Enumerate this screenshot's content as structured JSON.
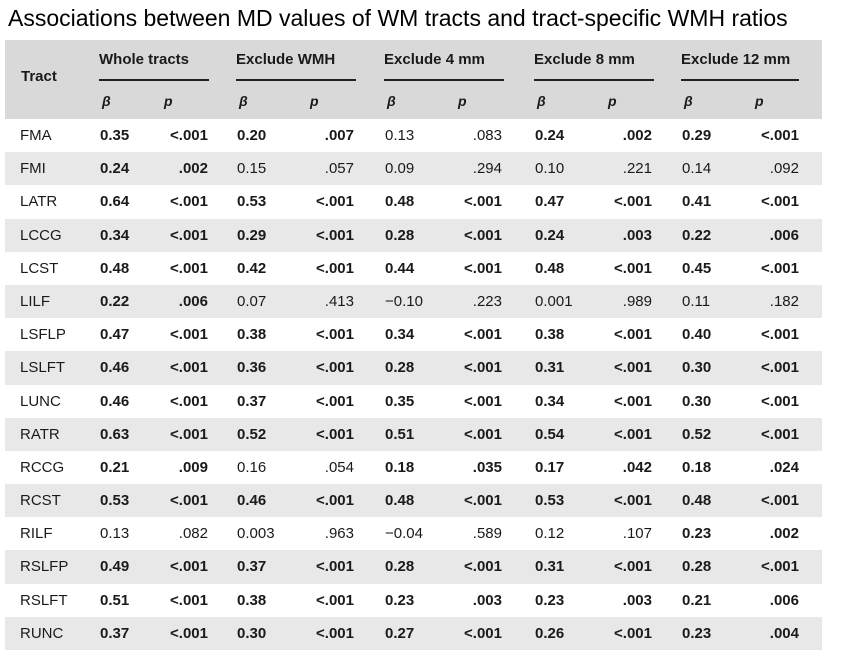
{
  "title": "Associations between MD values of WM tracts and tract-specific WMH ratios",
  "header": {
    "tract": "Tract",
    "groups": [
      "Whole tracts",
      "Exclude WMH",
      "Exclude 4 mm",
      "Exclude 8 mm",
      "Exclude 12 mm"
    ],
    "beta": "β",
    "p": "p"
  },
  "rows": [
    {
      "tract": "FMA",
      "cells": [
        [
          "0.35",
          1
        ],
        [
          "<.001",
          1
        ],
        [
          "0.20",
          1
        ],
        [
          ".007",
          1
        ],
        [
          "0.13",
          0
        ],
        [
          ".083",
          0
        ],
        [
          "0.24",
          1
        ],
        [
          ".002",
          1
        ],
        [
          "0.29",
          1
        ],
        [
          "<.001",
          1
        ]
      ]
    },
    {
      "tract": "FMI",
      "cells": [
        [
          "0.24",
          1
        ],
        [
          ".002",
          1
        ],
        [
          "0.15",
          0
        ],
        [
          ".057",
          0
        ],
        [
          "0.09",
          0
        ],
        [
          ".294",
          0
        ],
        [
          "0.10",
          0
        ],
        [
          ".221",
          0
        ],
        [
          "0.14",
          0
        ],
        [
          ".092",
          0
        ]
      ]
    },
    {
      "tract": "LATR",
      "cells": [
        [
          "0.64",
          1
        ],
        [
          "<.001",
          1
        ],
        [
          "0.53",
          1
        ],
        [
          "<.001",
          1
        ],
        [
          "0.48",
          1
        ],
        [
          "<.001",
          1
        ],
        [
          "0.47",
          1
        ],
        [
          "<.001",
          1
        ],
        [
          "0.41",
          1
        ],
        [
          "<.001",
          1
        ]
      ]
    },
    {
      "tract": "LCCG",
      "cells": [
        [
          "0.34",
          1
        ],
        [
          "<.001",
          1
        ],
        [
          "0.29",
          1
        ],
        [
          "<.001",
          1
        ],
        [
          "0.28",
          1
        ],
        [
          "<.001",
          1
        ],
        [
          "0.24",
          1
        ],
        [
          ".003",
          1
        ],
        [
          "0.22",
          1
        ],
        [
          ".006",
          1
        ]
      ]
    },
    {
      "tract": "LCST",
      "cells": [
        [
          "0.48",
          1
        ],
        [
          "<.001",
          1
        ],
        [
          "0.42",
          1
        ],
        [
          "<.001",
          1
        ],
        [
          "0.44",
          1
        ],
        [
          "<.001",
          1
        ],
        [
          "0.48",
          1
        ],
        [
          "<.001",
          1
        ],
        [
          "0.45",
          1
        ],
        [
          "<.001",
          1
        ]
      ]
    },
    {
      "tract": "LILF",
      "cells": [
        [
          "0.22",
          1
        ],
        [
          ".006",
          1
        ],
        [
          "0.07",
          0
        ],
        [
          ".413",
          0
        ],
        [
          "−0.10",
          0
        ],
        [
          ".223",
          0
        ],
        [
          "0.001",
          0
        ],
        [
          ".989",
          0
        ],
        [
          "0.11",
          0
        ],
        [
          ".182",
          0
        ]
      ]
    },
    {
      "tract": "LSFLP",
      "cells": [
        [
          "0.47",
          1
        ],
        [
          "<.001",
          1
        ],
        [
          "0.38",
          1
        ],
        [
          "<.001",
          1
        ],
        [
          "0.34",
          1
        ],
        [
          "<.001",
          1
        ],
        [
          "0.38",
          1
        ],
        [
          "<.001",
          1
        ],
        [
          "0.40",
          1
        ],
        [
          "<.001",
          1
        ]
      ]
    },
    {
      "tract": "LSLFT",
      "cells": [
        [
          "0.46",
          1
        ],
        [
          "<.001",
          1
        ],
        [
          "0.36",
          1
        ],
        [
          "<.001",
          1
        ],
        [
          "0.28",
          1
        ],
        [
          "<.001",
          1
        ],
        [
          "0.31",
          1
        ],
        [
          "<.001",
          1
        ],
        [
          "0.30",
          1
        ],
        [
          "<.001",
          1
        ]
      ]
    },
    {
      "tract": "LUNC",
      "cells": [
        [
          "0.46",
          1
        ],
        [
          "<.001",
          1
        ],
        [
          "0.37",
          1
        ],
        [
          "<.001",
          1
        ],
        [
          "0.35",
          1
        ],
        [
          "<.001",
          1
        ],
        [
          "0.34",
          1
        ],
        [
          "<.001",
          1
        ],
        [
          "0.30",
          1
        ],
        [
          "<.001",
          1
        ]
      ]
    },
    {
      "tract": "RATR",
      "cells": [
        [
          "0.63",
          1
        ],
        [
          "<.001",
          1
        ],
        [
          "0.52",
          1
        ],
        [
          "<.001",
          1
        ],
        [
          "0.51",
          1
        ],
        [
          "<.001",
          1
        ],
        [
          "0.54",
          1
        ],
        [
          "<.001",
          1
        ],
        [
          "0.52",
          1
        ],
        [
          "<.001",
          1
        ]
      ]
    },
    {
      "tract": "RCCG",
      "cells": [
        [
          "0.21",
          1
        ],
        [
          ".009",
          1
        ],
        [
          "0.16",
          0
        ],
        [
          ".054",
          0
        ],
        [
          "0.18",
          1
        ],
        [
          ".035",
          1
        ],
        [
          "0.17",
          1
        ],
        [
          ".042",
          1
        ],
        [
          "0.18",
          1
        ],
        [
          ".024",
          1
        ]
      ]
    },
    {
      "tract": "RCST",
      "cells": [
        [
          "0.53",
          1
        ],
        [
          "<.001",
          1
        ],
        [
          "0.46",
          1
        ],
        [
          "<.001",
          1
        ],
        [
          "0.48",
          1
        ],
        [
          "<.001",
          1
        ],
        [
          "0.53",
          1
        ],
        [
          "<.001",
          1
        ],
        [
          "0.48",
          1
        ],
        [
          "<.001",
          1
        ]
      ]
    },
    {
      "tract": "RILF",
      "cells": [
        [
          "0.13",
          0
        ],
        [
          ".082",
          0
        ],
        [
          "0.003",
          0
        ],
        [
          ".963",
          0
        ],
        [
          "−0.04",
          0
        ],
        [
          ".589",
          0
        ],
        [
          "0.12",
          0
        ],
        [
          ".107",
          0
        ],
        [
          "0.23",
          1
        ],
        [
          ".002",
          1
        ]
      ]
    },
    {
      "tract": "RSLFP",
      "cells": [
        [
          "0.49",
          1
        ],
        [
          "<.001",
          1
        ],
        [
          "0.37",
          1
        ],
        [
          "<.001",
          1
        ],
        [
          "0.28",
          1
        ],
        [
          "<.001",
          1
        ],
        [
          "0.31",
          1
        ],
        [
          "<.001",
          1
        ],
        [
          "0.28",
          1
        ],
        [
          "<.001",
          1
        ]
      ]
    },
    {
      "tract": "RSLFT",
      "cells": [
        [
          "0.51",
          1
        ],
        [
          "<.001",
          1
        ],
        [
          "0.38",
          1
        ],
        [
          "<.001",
          1
        ],
        [
          "0.23",
          1
        ],
        [
          ".003",
          1
        ],
        [
          "0.23",
          1
        ],
        [
          ".003",
          1
        ],
        [
          "0.21",
          1
        ],
        [
          ".006",
          1
        ]
      ]
    },
    {
      "tract": "RUNC",
      "cells": [
        [
          "0.37",
          1
        ],
        [
          "<.001",
          1
        ],
        [
          "0.30",
          1
        ],
        [
          "<.001",
          1
        ],
        [
          "0.27",
          1
        ],
        [
          "<.001",
          1
        ],
        [
          "0.26",
          1
        ],
        [
          "<.001",
          1
        ],
        [
          "0.23",
          1
        ],
        [
          ".004",
          1
        ]
      ]
    }
  ]
}
